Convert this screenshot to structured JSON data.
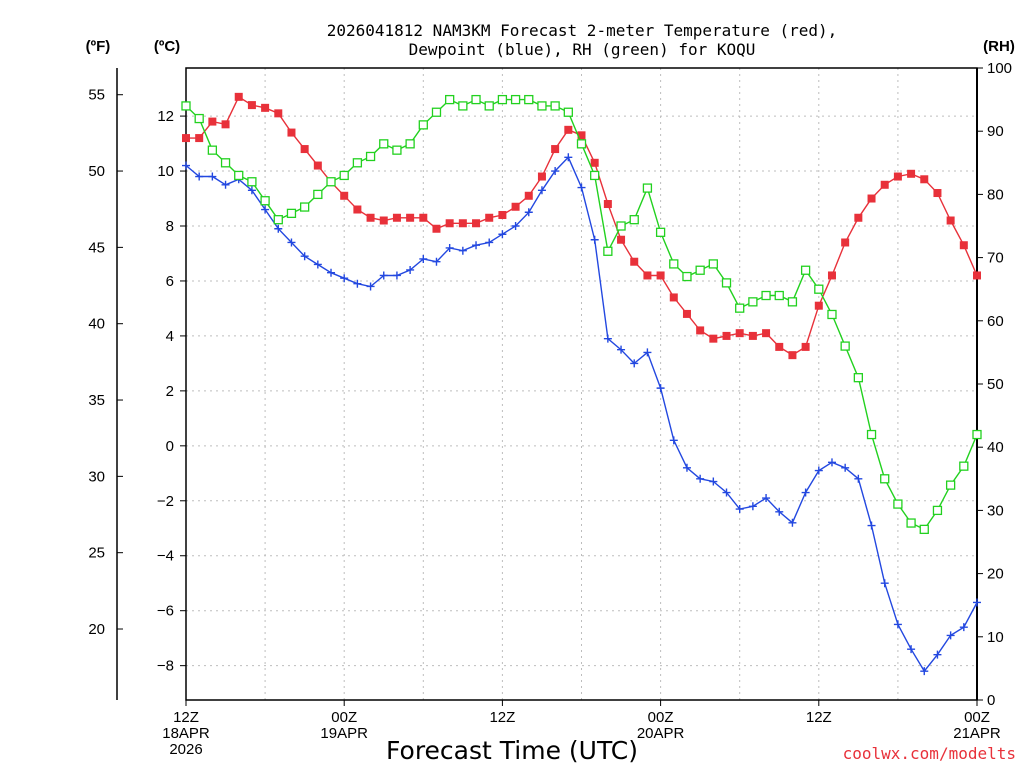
{
  "chart_data": {
    "type": "line",
    "title_line1": "2026041812 NAM3KM Forecast 2-meter Temperature (red),",
    "title_line2": "Dewpoint (blue), RH (green) for KOQU",
    "xlabel": "Forecast Time (UTC)",
    "credit": "coolwx.com/modelts",
    "unit_left_f": "(ºF)",
    "unit_left_c": "(ºC)",
    "unit_right": "(RH)",
    "x_unit": "forecast hour",
    "xlim": [
      0,
      60
    ],
    "ylim_c": [
      -9.25,
      13.75
    ],
    "ylim_rh": [
      0,
      100
    ],
    "ylim_f": [
      15.35,
      56.75
    ],
    "yticks_c": [
      -8,
      -6,
      -4,
      -2,
      0,
      2,
      4,
      6,
      8,
      10,
      12
    ],
    "yticks_f": [
      20,
      25,
      30,
      35,
      40,
      45,
      50,
      55
    ],
    "yticks_rh": [
      0,
      10,
      20,
      30,
      40,
      50,
      60,
      70,
      80,
      90,
      100
    ],
    "x_ticks": [
      {
        "hour": 0,
        "lines": [
          "12Z",
          "18APR",
          "2026"
        ]
      },
      {
        "hour": 12,
        "lines": [
          "00Z",
          "19APR"
        ]
      },
      {
        "hour": 24,
        "lines": [
          "12Z"
        ]
      },
      {
        "hour": 36,
        "lines": [
          "00Z",
          "20APR"
        ]
      },
      {
        "hour": 48,
        "lines": [
          "12Z"
        ]
      },
      {
        "hour": 60,
        "lines": [
          "00Z",
          "21APR"
        ]
      }
    ],
    "series": [
      {
        "name": "2-meter Temperature",
        "unit": "C",
        "color": "#e8313a",
        "marker": "filled-square",
        "x": [
          0,
          1,
          2,
          3,
          4,
          5,
          6,
          7,
          8,
          9,
          10,
          11,
          12,
          13,
          14,
          15,
          16,
          17,
          18,
          19,
          20,
          21,
          22,
          23,
          24,
          25,
          26,
          27,
          28,
          29,
          30,
          31,
          32,
          33,
          34,
          35,
          36,
          37,
          38,
          39,
          40,
          41,
          42,
          43,
          44,
          45,
          46,
          47,
          48,
          49,
          50,
          51,
          52,
          53,
          54,
          55,
          56,
          57,
          58,
          59,
          60
        ],
        "values": [
          11.2,
          11.2,
          11.8,
          11.7,
          12.7,
          12.4,
          12.3,
          12.1,
          11.4,
          10.8,
          10.2,
          9.6,
          9.1,
          8.6,
          8.3,
          8.2,
          8.3,
          8.3,
          8.3,
          7.9,
          8.1,
          8.1,
          8.1,
          8.3,
          8.4,
          8.7,
          9.1,
          9.8,
          10.8,
          11.5,
          11.3,
          10.3,
          8.8,
          7.5,
          6.7,
          6.2,
          6.2,
          5.4,
          4.8,
          4.2,
          3.9,
          4.0,
          4.1,
          4.0,
          4.1,
          3.6,
          3.3,
          3.6,
          5.1,
          6.2,
          7.4,
          8.3,
          9.0,
          9.5,
          9.8,
          9.9,
          9.7,
          9.2,
          8.2,
          7.3,
          6.2
        ]
      },
      {
        "name": "Dewpoint",
        "unit": "C",
        "color": "#2348e0",
        "marker": "plus",
        "x": [
          0,
          1,
          2,
          3,
          4,
          5,
          6,
          7,
          8,
          9,
          10,
          11,
          12,
          13,
          14,
          15,
          16,
          17,
          18,
          19,
          20,
          21,
          22,
          23,
          24,
          25,
          26,
          27,
          28,
          29,
          30,
          31,
          32,
          33,
          34,
          35,
          36,
          37,
          38,
          39,
          40,
          41,
          42,
          43,
          44,
          45,
          46,
          47,
          48,
          49,
          50,
          51,
          52,
          53,
          54,
          55,
          56,
          57,
          58,
          59,
          60
        ],
        "values": [
          10.2,
          9.8,
          9.8,
          9.5,
          9.7,
          9.3,
          8.6,
          7.9,
          7.4,
          6.9,
          6.6,
          6.3,
          6.1,
          5.9,
          5.8,
          6.2,
          6.2,
          6.4,
          6.8,
          6.7,
          7.2,
          7.1,
          7.3,
          7.4,
          7.7,
          8.0,
          8.5,
          9.3,
          10.0,
          10.5,
          9.4,
          7.5,
          3.9,
          3.5,
          3.0,
          3.4,
          2.1,
          0.2,
          -0.8,
          -1.2,
          -1.3,
          -1.7,
          -2.3,
          -2.2,
          -1.9,
          -2.4,
          -2.8,
          -1.7,
          -0.9,
          -0.6,
          -0.8,
          -1.2,
          -2.9,
          -5.0,
          -6.5,
          -7.4,
          -8.2,
          -7.6,
          -6.9,
          -6.6,
          -5.7
        ]
      },
      {
        "name": "RH",
        "unit": "%",
        "color": "#22d11f",
        "marker": "open-square",
        "x": [
          0,
          1,
          2,
          3,
          4,
          5,
          6,
          7,
          8,
          9,
          10,
          11,
          12,
          13,
          14,
          15,
          16,
          17,
          18,
          19,
          20,
          21,
          22,
          23,
          24,
          25,
          26,
          27,
          28,
          29,
          30,
          31,
          32,
          33,
          34,
          35,
          36,
          37,
          38,
          39,
          40,
          41,
          42,
          43,
          44,
          45,
          46,
          47,
          48,
          49,
          50,
          51,
          52,
          53,
          54,
          55,
          56,
          57,
          58,
          59,
          60
        ],
        "values": [
          94,
          92,
          87,
          85,
          83,
          82,
          79,
          76,
          77,
          78,
          80,
          82,
          83,
          85,
          86,
          88,
          87,
          88,
          91,
          93,
          95,
          94,
          95,
          94,
          95,
          95,
          95,
          94,
          94,
          93,
          88,
          83,
          71,
          75,
          76,
          81,
          74,
          69,
          67,
          68,
          69,
          66,
          62,
          63,
          64,
          64,
          63,
          68,
          65,
          61,
          56,
          51,
          42,
          35,
          31,
          28,
          27,
          30,
          34,
          37,
          42
        ]
      }
    ]
  }
}
